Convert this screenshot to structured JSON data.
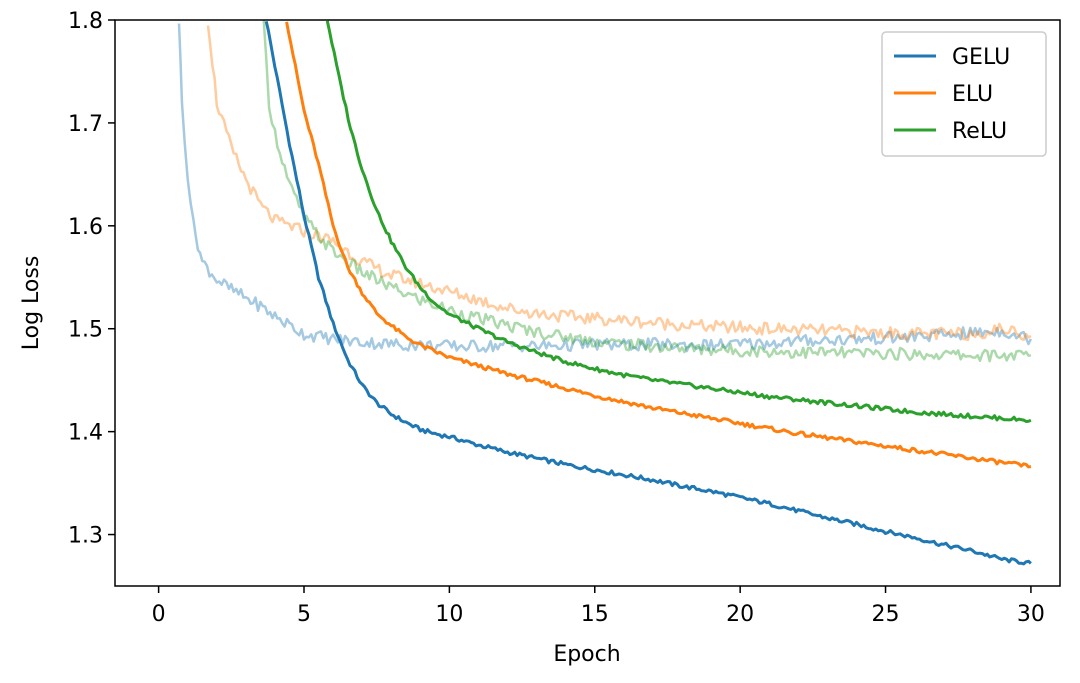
{
  "chart_data": {
    "type": "line",
    "title": "",
    "xlabel": "Epoch",
    "ylabel": "Log Loss",
    "xlim": [
      -1.5,
      31
    ],
    "ylim": [
      1.25,
      1.8
    ],
    "xticks": [
      0,
      5,
      10,
      15,
      20,
      25,
      30
    ],
    "yticks": [
      1.3,
      1.4,
      1.5,
      1.6,
      1.7,
      1.8
    ],
    "ytick_labels": [
      "1.3",
      "1.4",
      "1.5",
      "1.6",
      "1.7",
      "1.8"
    ],
    "grid": false,
    "legend": "top-right",
    "series": [
      {
        "name": "GELU",
        "color": "#1f77b4",
        "kind": "train",
        "x": [
          3.7,
          4.0,
          4.5,
          5.0,
          5.5,
          6.0,
          6.5,
          7.0,
          7.5,
          8.0,
          8.5,
          9.0,
          9.5,
          10,
          11,
          12,
          13,
          14,
          15,
          16,
          17,
          18,
          19,
          20,
          21,
          22,
          23,
          24,
          25,
          26,
          27,
          28,
          29,
          30
        ],
        "y": [
          1.8,
          1.755,
          1.68,
          1.61,
          1.55,
          1.505,
          1.47,
          1.445,
          1.428,
          1.417,
          1.409,
          1.402,
          1.398,
          1.395,
          1.387,
          1.38,
          1.374,
          1.368,
          1.363,
          1.358,
          1.353,
          1.347,
          1.342,
          1.336,
          1.33,
          1.323,
          1.316,
          1.31,
          1.303,
          1.297,
          1.29,
          1.284,
          1.276,
          1.272
        ]
      },
      {
        "name": "ELU",
        "color": "#ff7f0e",
        "kind": "train",
        "x": [
          4.4,
          4.7,
          5.0,
          5.5,
          6.0,
          6.5,
          7.0,
          7.5,
          8.0,
          8.5,
          9.0,
          9.5,
          10,
          11,
          12,
          13,
          14,
          15,
          16,
          17,
          18,
          19,
          20,
          21,
          22,
          23,
          24,
          25,
          26,
          27,
          28,
          29,
          30
        ],
        "y": [
          1.8,
          1.755,
          1.712,
          1.66,
          1.6,
          1.56,
          1.535,
          1.515,
          1.503,
          1.492,
          1.484,
          1.478,
          1.472,
          1.464,
          1.456,
          1.449,
          1.442,
          1.435,
          1.429,
          1.423,
          1.418,
          1.413,
          1.408,
          1.403,
          1.398,
          1.394,
          1.39,
          1.386,
          1.382,
          1.378,
          1.374,
          1.37,
          1.366
        ]
      },
      {
        "name": "ReLU",
        "color": "#2ca02c",
        "kind": "train",
        "x": [
          5.8,
          6.2,
          6.6,
          7.0,
          7.5,
          8.0,
          8.5,
          9.0,
          9.5,
          10,
          11,
          12,
          13,
          14,
          15,
          16,
          17,
          18,
          19,
          20,
          21,
          22,
          23,
          24,
          25,
          26,
          27,
          28,
          29,
          30
        ],
        "y": [
          1.8,
          1.745,
          1.695,
          1.655,
          1.615,
          1.585,
          1.56,
          1.54,
          1.525,
          1.514,
          1.5,
          1.487,
          1.477,
          1.468,
          1.461,
          1.455,
          1.45,
          1.446,
          1.442,
          1.438,
          1.434,
          1.431,
          1.428,
          1.425,
          1.422,
          1.419,
          1.417,
          1.415,
          1.413,
          1.411
        ]
      },
      {
        "name": "",
        "color": "#1f77b4",
        "kind": "test",
        "x": [
          0.7,
          0.8,
          1.0,
          1.2,
          1.5,
          2.0,
          2.5,
          3.0,
          3.5,
          4.0,
          5.0,
          6.0,
          7.0,
          8.0,
          9.0,
          10,
          11,
          12,
          13,
          14,
          15,
          16,
          17,
          18,
          19,
          20,
          21,
          22,
          23,
          24,
          25,
          26,
          27,
          28,
          29,
          30
        ],
        "y": [
          1.8,
          1.72,
          1.65,
          1.6,
          1.565,
          1.548,
          1.538,
          1.53,
          1.522,
          1.512,
          1.495,
          1.49,
          1.487,
          1.485,
          1.484,
          1.483,
          1.483,
          1.484,
          1.483,
          1.484,
          1.485,
          1.484,
          1.485,
          1.484,
          1.484,
          1.485,
          1.486,
          1.488,
          1.489,
          1.49,
          1.491,
          1.492,
          1.494,
          1.496,
          1.498,
          1.49
        ]
      },
      {
        "name": "",
        "color": "#ff7f0e",
        "kind": "test",
        "x": [
          1.7,
          2.0,
          2.5,
          3.0,
          3.5,
          4.0,
          4.5,
          5.0,
          6.0,
          7.0,
          8.0,
          9.0,
          10,
          11,
          12,
          13,
          14,
          15,
          16,
          17,
          18,
          19,
          20,
          21,
          22,
          23,
          24,
          25,
          26,
          27,
          28,
          29,
          30
        ],
        "y": [
          1.8,
          1.72,
          1.675,
          1.645,
          1.62,
          1.605,
          1.6,
          1.595,
          1.585,
          1.565,
          1.552,
          1.544,
          1.536,
          1.528,
          1.52,
          1.515,
          1.512,
          1.51,
          1.508,
          1.506,
          1.504,
          1.502,
          1.501,
          1.5,
          1.499,
          1.498,
          1.497,
          1.496,
          1.495,
          1.495,
          1.495,
          1.5,
          1.493
        ]
      },
      {
        "name": "",
        "color": "#2ca02c",
        "kind": "test",
        "x": [
          3.6,
          3.8,
          4.0,
          4.5,
          5.0,
          5.5,
          6.0,
          7.0,
          8.0,
          9.0,
          10,
          11,
          12,
          13,
          14,
          15,
          16,
          17,
          18,
          19,
          20,
          21,
          22,
          23,
          24,
          25,
          26,
          27,
          28,
          29,
          30
        ],
        "y": [
          1.8,
          1.72,
          1.69,
          1.64,
          1.608,
          1.59,
          1.575,
          1.555,
          1.54,
          1.528,
          1.518,
          1.51,
          1.503,
          1.497,
          1.492,
          1.488,
          1.485,
          1.483,
          1.481,
          1.48,
          1.479,
          1.478,
          1.477,
          1.477,
          1.476,
          1.476,
          1.475,
          1.475,
          1.474,
          1.474,
          1.474
        ]
      }
    ]
  }
}
